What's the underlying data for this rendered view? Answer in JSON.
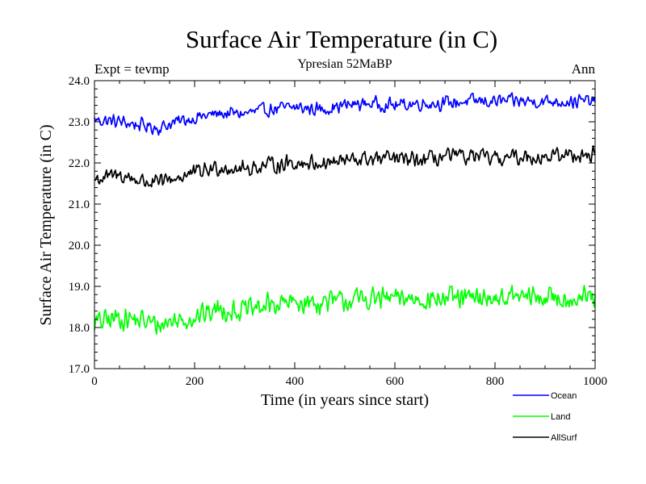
{
  "chart_data": {
    "type": "line",
    "title": "Surface Air Temperature (in C)",
    "subtitle": "Ypresian  52MaBP",
    "experiment_label": "Expt = tevmp",
    "season_label": "Ann",
    "xlabel": "Time (in years since start)",
    "ylabel": "Surface Air Temperature (in C)",
    "xlim": [
      0,
      1000
    ],
    "ylim": [
      17.0,
      24.0
    ],
    "x_ticks": [
      0,
      200,
      400,
      600,
      800,
      1000
    ],
    "x_tick_labels": [
      "0",
      "200",
      "400",
      "600",
      "800",
      "1000"
    ],
    "y_ticks": [
      17.0,
      18.0,
      19.0,
      20.0,
      21.0,
      22.0,
      23.0,
      24.0
    ],
    "y_tick_labels": [
      "17.0",
      "18.0",
      "19.0",
      "20.0",
      "21.0",
      "22.0",
      "23.0",
      "24.0"
    ],
    "grid": false,
    "legend_position": "bottom-right, below plot",
    "series": [
      {
        "name": "Ocean",
        "color": "#0000ff",
        "trend_x": [
          0,
          50,
          100,
          130,
          150,
          200,
          250,
          300,
          350,
          400,
          450,
          500,
          550,
          600,
          650,
          700,
          750,
          800,
          850,
          900,
          950,
          1000
        ],
        "trend_y": [
          23.05,
          23.0,
          22.9,
          22.85,
          22.95,
          23.1,
          23.2,
          23.2,
          23.3,
          23.35,
          23.3,
          23.4,
          23.45,
          23.4,
          23.45,
          23.45,
          23.5,
          23.5,
          23.5,
          23.5,
          23.5,
          23.5
        ],
        "noise": 0.17
      },
      {
        "name": "Land",
        "color": "#00ff00",
        "trend_x": [
          0,
          50,
          100,
          130,
          150,
          200,
          250,
          300,
          350,
          400,
          450,
          500,
          550,
          600,
          650,
          700,
          750,
          800,
          850,
          900,
          950,
          1000
        ],
        "trend_y": [
          18.1,
          18.25,
          18.15,
          18.05,
          18.15,
          18.25,
          18.45,
          18.4,
          18.55,
          18.6,
          18.6,
          18.65,
          18.7,
          18.7,
          18.7,
          18.7,
          18.7,
          18.72,
          18.75,
          18.72,
          18.72,
          18.72
        ],
        "noise": 0.28
      },
      {
        "name": "AllSurf",
        "color": "#000000",
        "trend_x": [
          0,
          50,
          100,
          130,
          150,
          200,
          250,
          300,
          350,
          400,
          450,
          500,
          550,
          600,
          650,
          700,
          750,
          800,
          850,
          900,
          950,
          1000
        ],
        "trend_y": [
          21.6,
          21.7,
          21.55,
          21.5,
          21.6,
          21.75,
          21.9,
          21.85,
          21.95,
          22.0,
          22.0,
          22.05,
          22.1,
          22.1,
          22.05,
          22.15,
          22.15,
          22.1,
          22.15,
          22.15,
          22.2,
          22.2
        ],
        "noise": 0.2
      }
    ]
  }
}
